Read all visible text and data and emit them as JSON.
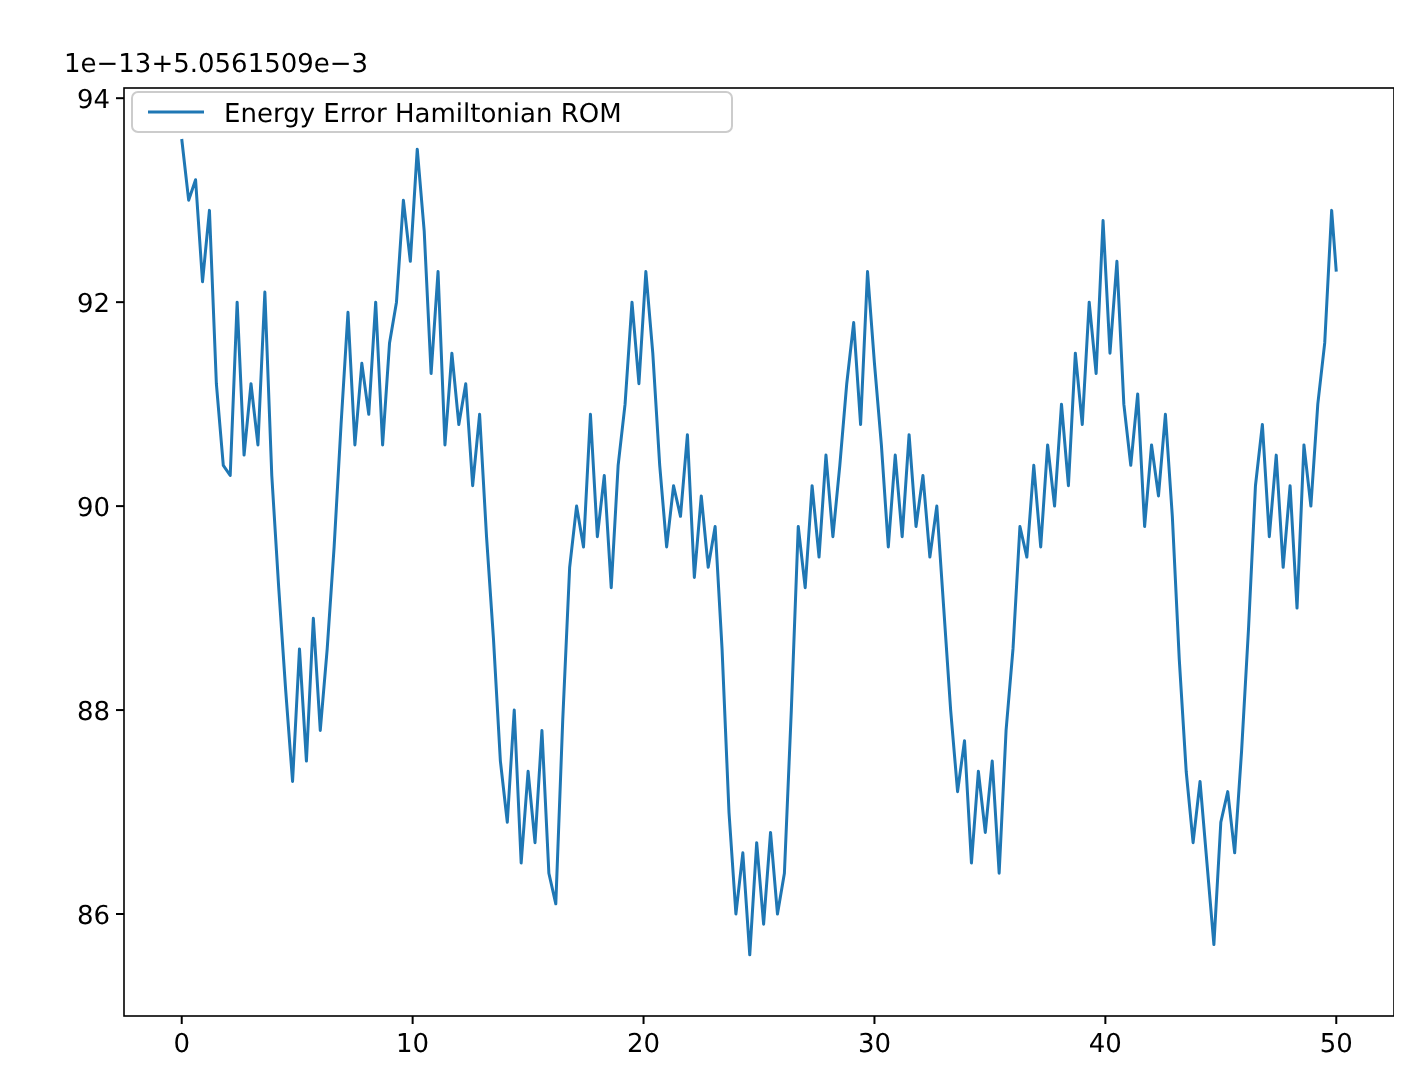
{
  "chart_data": {
    "type": "line",
    "annotations": [
      "1e−13+5.0561509e−3"
    ],
    "xlim": [
      -2.5,
      52.5
    ],
    "ylim": [
      85.0,
      94.1
    ],
    "xticks": [
      0,
      10,
      20,
      30,
      40,
      50
    ],
    "yticks": [
      86,
      88,
      90,
      92,
      94
    ],
    "legend": "top left",
    "grid": false,
    "series": [
      {
        "name": "Energy Error Hamiltonian ROM",
        "color": "#1f77b4",
        "x": [
          0,
          0.3,
          0.6,
          0.9,
          1.2,
          1.5,
          1.8,
          2.1,
          2.4,
          2.7,
          3,
          3.3,
          3.6,
          3.9,
          4.2,
          4.5,
          4.8,
          5.1,
          5.4,
          5.7,
          6,
          6.3,
          6.6,
          6.9,
          7.2,
          7.5,
          7.8,
          8.1,
          8.4,
          8.7,
          9,
          9.3,
          9.6,
          9.9,
          10.2,
          10.5,
          10.8,
          11.1,
          11.4,
          11.7,
          12,
          12.3,
          12.6,
          12.9,
          13.2,
          13.5,
          13.8,
          14.1,
          14.4,
          14.7,
          15,
          15.3,
          15.6,
          15.9,
          16.2,
          16.5,
          16.8,
          17.1,
          17.4,
          17.7,
          18,
          18.3,
          18.6,
          18.9,
          19.2,
          19.5,
          19.8,
          20.1,
          20.4,
          20.7,
          21,
          21.3,
          21.6,
          21.9,
          22.2,
          22.5,
          22.8,
          23.1,
          23.4,
          23.7,
          24,
          24.3,
          24.6,
          24.9,
          25.2,
          25.5,
          25.8,
          26.1,
          26.4,
          26.7,
          27,
          27.3,
          27.6,
          27.9,
          28.2,
          28.5,
          28.8,
          29.1,
          29.4,
          29.7,
          30,
          30.3,
          30.6,
          30.9,
          31.2,
          31.5,
          31.8,
          32.1,
          32.4,
          32.7,
          33,
          33.3,
          33.6,
          33.9,
          34.2,
          34.5,
          34.8,
          35.1,
          35.4,
          35.7,
          36,
          36.3,
          36.6,
          36.9,
          37.2,
          37.5,
          37.8,
          38.1,
          38.4,
          38.7,
          39,
          39.3,
          39.6,
          39.9,
          40.2,
          40.5,
          40.8,
          41.1,
          41.4,
          41.7,
          42,
          42.3,
          42.6,
          42.9,
          43.2,
          43.5,
          43.8,
          44.1,
          44.4,
          44.7,
          45,
          45.3,
          45.6,
          45.9,
          46.2,
          46.5,
          46.8,
          47.1,
          47.4,
          47.7,
          48,
          48.3,
          48.6,
          48.9,
          49.2,
          49.5,
          49.8,
          50
        ],
        "values": [
          93.6,
          93.0,
          93.2,
          92.2,
          92.9,
          91.2,
          90.4,
          90.3,
          92.0,
          90.5,
          91.2,
          90.6,
          92.1,
          90.3,
          89.2,
          88.2,
          87.3,
          88.6,
          87.5,
          88.9,
          87.8,
          88.6,
          89.6,
          90.8,
          91.9,
          90.6,
          91.4,
          90.9,
          92.0,
          90.6,
          91.6,
          92.0,
          93.0,
          92.4,
          93.5,
          92.7,
          91.3,
          92.3,
          90.6,
          91.5,
          90.8,
          91.2,
          90.2,
          90.9,
          89.7,
          88.7,
          87.5,
          86.9,
          88.0,
          86.5,
          87.4,
          86.7,
          87.8,
          86.4,
          86.1,
          87.9,
          89.4,
          90.0,
          89.6,
          90.9,
          89.7,
          90.3,
          89.2,
          90.4,
          91.0,
          92.0,
          91.2,
          92.3,
          91.5,
          90.4,
          89.6,
          90.2,
          89.9,
          90.7,
          89.3,
          90.1,
          89.4,
          89.8,
          88.6,
          87.0,
          86.0,
          86.6,
          85.6,
          86.7,
          85.9,
          86.8,
          86.0,
          86.4,
          88.0,
          89.8,
          89.2,
          90.2,
          89.5,
          90.5,
          89.7,
          90.4,
          91.2,
          91.8,
          90.8,
          92.3,
          91.4,
          90.6,
          89.6,
          90.5,
          89.7,
          90.7,
          89.8,
          90.3,
          89.5,
          90.0,
          89.0,
          88.0,
          87.2,
          87.7,
          86.5,
          87.4,
          86.8,
          87.5,
          86.4,
          87.8,
          88.6,
          89.8,
          89.5,
          90.4,
          89.6,
          90.6,
          90.0,
          91.0,
          90.2,
          91.5,
          90.8,
          92.0,
          91.3,
          92.8,
          91.5,
          92.4,
          91.0,
          90.4,
          91.1,
          89.8,
          90.6,
          90.1,
          90.9,
          89.9,
          88.5,
          87.4,
          86.7,
          87.3,
          86.5,
          85.7,
          86.9,
          87.2,
          86.6,
          87.6,
          88.8,
          90.2,
          90.8,
          89.7,
          90.5,
          89.4,
          90.2,
          89.0,
          90.6,
          90.0,
          91.0,
          91.6,
          92.9,
          92.3
        ]
      }
    ]
  }
}
